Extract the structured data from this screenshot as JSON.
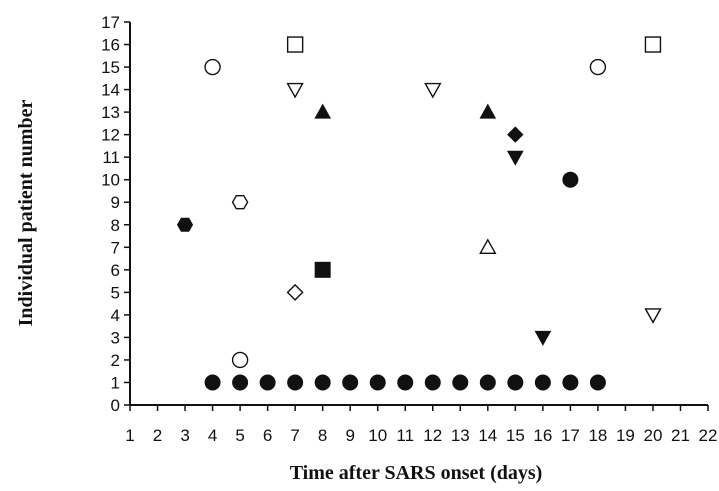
{
  "chart_data": {
    "type": "scatter",
    "title": "",
    "xlabel": "Time after SARS onset (days)",
    "ylabel": "Individual patient number",
    "xlim": [
      1,
      22
    ],
    "ylim": [
      0,
      17
    ],
    "x_ticks": [
      1,
      2,
      3,
      4,
      5,
      6,
      7,
      8,
      9,
      10,
      11,
      12,
      13,
      14,
      15,
      16,
      17,
      18,
      19,
      20,
      21,
      22
    ],
    "y_ticks": [
      0,
      1,
      2,
      3,
      4,
      5,
      6,
      7,
      8,
      9,
      10,
      11,
      12,
      13,
      14,
      15,
      16,
      17
    ],
    "grid": false,
    "legend": "none",
    "colors": {
      "marker": "#111111",
      "axis": "#111111",
      "background": "#ffffff"
    },
    "points": [
      {
        "x": 4,
        "y": 1,
        "marker": "filled-circle"
      },
      {
        "x": 5,
        "y": 1,
        "marker": "filled-circle"
      },
      {
        "x": 6,
        "y": 1,
        "marker": "filled-circle"
      },
      {
        "x": 7,
        "y": 1,
        "marker": "filled-circle"
      },
      {
        "x": 8,
        "y": 1,
        "marker": "filled-circle"
      },
      {
        "x": 9,
        "y": 1,
        "marker": "filled-circle"
      },
      {
        "x": 10,
        "y": 1,
        "marker": "filled-circle"
      },
      {
        "x": 11,
        "y": 1,
        "marker": "filled-circle"
      },
      {
        "x": 12,
        "y": 1,
        "marker": "filled-circle"
      },
      {
        "x": 13,
        "y": 1,
        "marker": "filled-circle"
      },
      {
        "x": 14,
        "y": 1,
        "marker": "filled-circle"
      },
      {
        "x": 15,
        "y": 1,
        "marker": "filled-circle"
      },
      {
        "x": 16,
        "y": 1,
        "marker": "filled-circle"
      },
      {
        "x": 17,
        "y": 1,
        "marker": "filled-circle"
      },
      {
        "x": 18,
        "y": 1,
        "marker": "filled-circle"
      },
      {
        "x": 5,
        "y": 2,
        "marker": "open-circle"
      },
      {
        "x": 16,
        "y": 3,
        "marker": "filled-triangle-down"
      },
      {
        "x": 20,
        "y": 4,
        "marker": "open-triangle-down"
      },
      {
        "x": 7,
        "y": 5,
        "marker": "open-diamond"
      },
      {
        "x": 8,
        "y": 6,
        "marker": "filled-square"
      },
      {
        "x": 14,
        "y": 7,
        "marker": "open-triangle-up"
      },
      {
        "x": 3,
        "y": 8,
        "marker": "filled-hexagon"
      },
      {
        "x": 5,
        "y": 9,
        "marker": "open-hexagon"
      },
      {
        "x": 17,
        "y": 10,
        "marker": "filled-circle"
      },
      {
        "x": 15,
        "y": 11,
        "marker": "filled-triangle-down"
      },
      {
        "x": 15,
        "y": 12,
        "marker": "filled-diamond"
      },
      {
        "x": 8,
        "y": 13,
        "marker": "filled-triangle-up"
      },
      {
        "x": 14,
        "y": 13,
        "marker": "filled-triangle-up"
      },
      {
        "x": 7,
        "y": 14,
        "marker": "open-triangle-down"
      },
      {
        "x": 12,
        "y": 14,
        "marker": "open-triangle-down"
      },
      {
        "x": 4,
        "y": 15,
        "marker": "open-circle"
      },
      {
        "x": 18,
        "y": 15,
        "marker": "open-circle"
      },
      {
        "x": 7,
        "y": 16,
        "marker": "open-square"
      },
      {
        "x": 20,
        "y": 16,
        "marker": "open-square"
      }
    ]
  }
}
